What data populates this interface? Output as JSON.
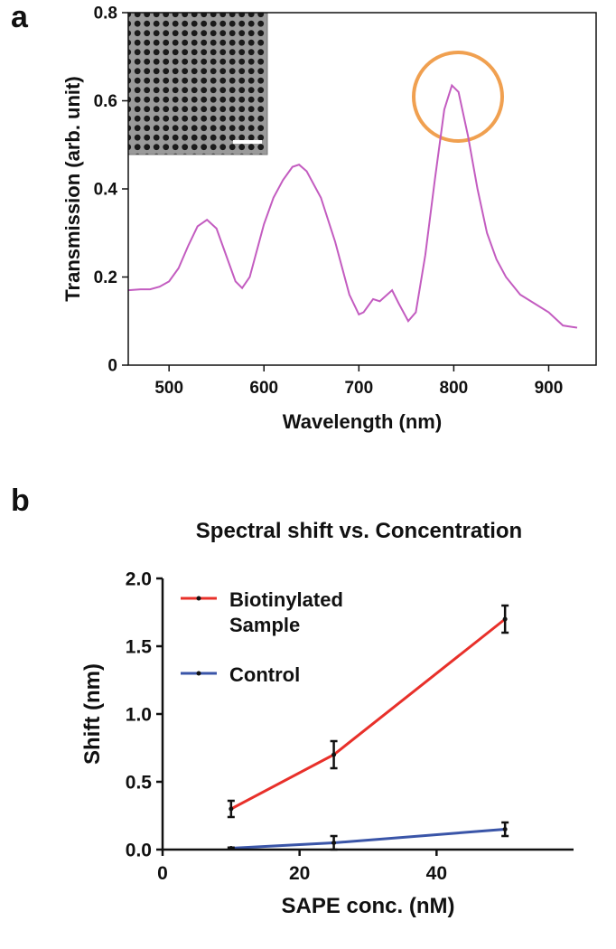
{
  "chart_data": [
    {
      "type": "line",
      "panel_label": "a",
      "x_label": "Wavelength (nm)",
      "y_label": "Transmission (arb. unit)",
      "x": [
        457,
        470,
        480,
        490,
        500,
        510,
        520,
        530,
        540,
        550,
        560,
        570,
        577,
        585,
        600,
        610,
        620,
        630,
        637,
        645,
        660,
        675,
        690,
        700,
        705,
        715,
        722,
        735,
        742,
        752,
        760,
        770,
        780,
        790,
        798,
        805,
        815,
        825,
        835,
        845,
        855,
        870,
        885,
        900,
        915,
        930
      ],
      "series": [
        {
          "color": "#c35cc0",
          "values": [
            0.17,
            0.172,
            0.172,
            0.178,
            0.19,
            0.22,
            0.27,
            0.315,
            0.33,
            0.31,
            0.25,
            0.19,
            0.175,
            0.2,
            0.32,
            0.38,
            0.42,
            0.45,
            0.455,
            0.44,
            0.38,
            0.28,
            0.16,
            0.115,
            0.12,
            0.15,
            0.145,
            0.17,
            0.14,
            0.1,
            0.12,
            0.25,
            0.42,
            0.58,
            0.635,
            0.62,
            0.52,
            0.4,
            0.3,
            0.24,
            0.2,
            0.16,
            0.14,
            0.12,
            0.09,
            0.085
          ]
        }
      ],
      "xlim": [
        457,
        950
      ],
      "xticks": [
        500,
        600,
        700,
        800,
        900
      ],
      "ylim": [
        0,
        0.8
      ],
      "yticks": [
        0,
        0.2,
        0.4,
        0.6,
        0.8
      ]
    },
    {
      "type": "line",
      "panel_label": "b",
      "title": "Spectral shift vs. Concentration",
      "x_label": "SAPE conc. (nM)",
      "y_label": "Shift (nm)",
      "x": [
        10,
        25,
        50
      ],
      "series": [
        {
          "name": "Biotinylated Sample",
          "color": "#e8302a",
          "values": [
            0.3,
            0.7,
            1.7
          ],
          "errors": [
            0.06,
            0.1,
            0.1
          ]
        },
        {
          "name": "Control",
          "color": "#3a55a8",
          "values": [
            0.01,
            0.05,
            0.15
          ],
          "errors": [
            0.005,
            0.05,
            0.05
          ]
        }
      ],
      "xlim": [
        0,
        60
      ],
      "xticks": [
        0,
        20,
        40
      ],
      "ylim": [
        0,
        2
      ],
      "yticks": [
        {
          "value": 0,
          "label": "0.0"
        },
        {
          "value": 0.5,
          "label": "0.5"
        },
        {
          "value": 1,
          "label": "1.0"
        },
        {
          "value": 1.5,
          "label": "1.5"
        },
        {
          "value": 2,
          "label": "2.0"
        }
      ]
    }
  ]
}
